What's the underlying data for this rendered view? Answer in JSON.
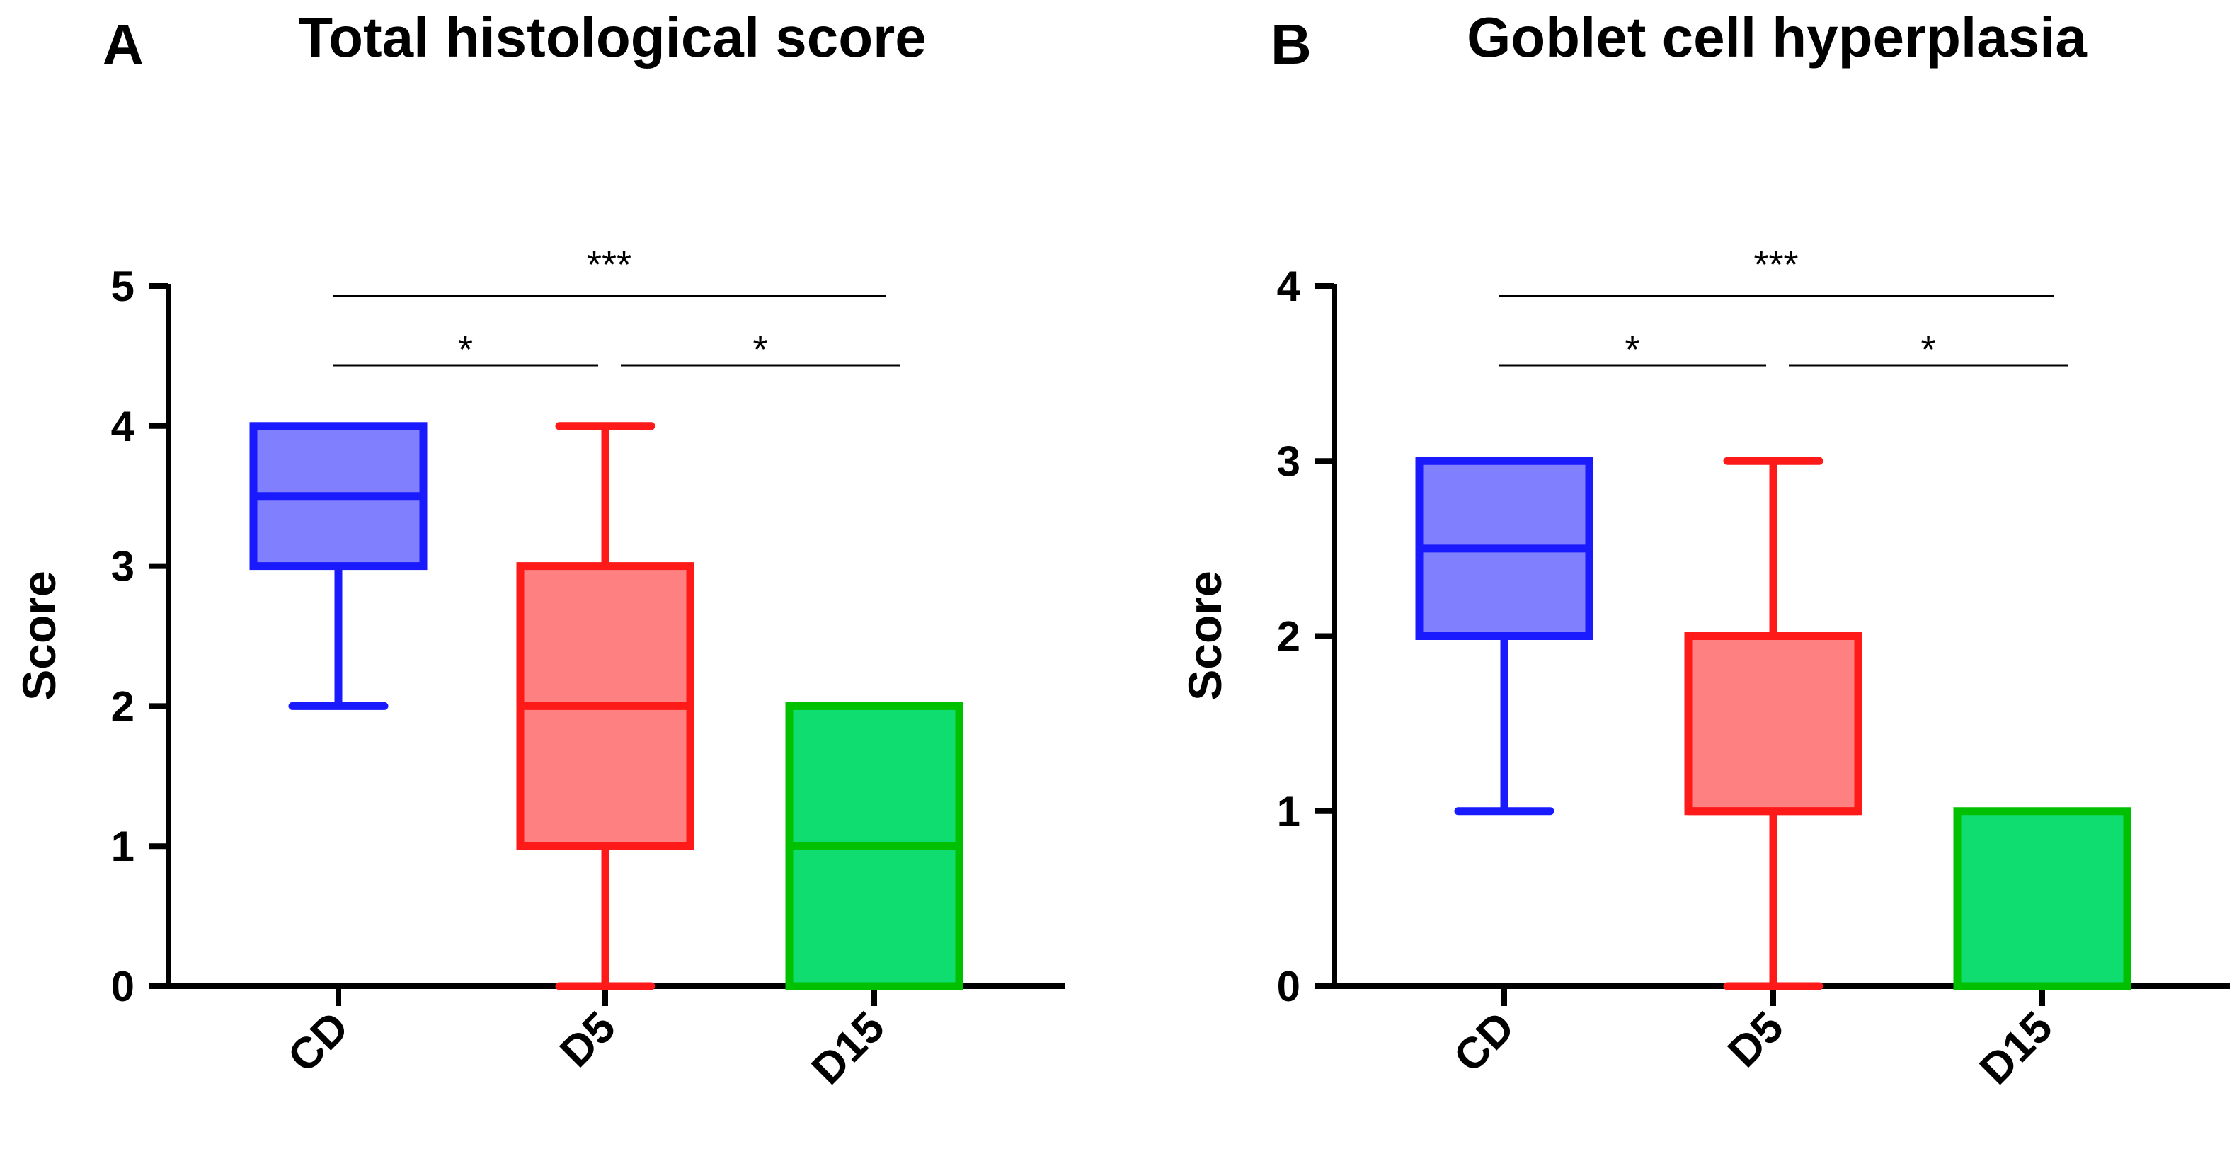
{
  "chart_data": [
    {
      "panel": "A",
      "type": "box",
      "title": "Total histological score",
      "xlabel": "",
      "ylabel": "Score",
      "ylim": [
        0,
        5
      ],
      "yticks": [
        0,
        1,
        2,
        3,
        4,
        5
      ],
      "categories": [
        "CD",
        "D5",
        "D15"
      ],
      "boxes": [
        {
          "category": "CD",
          "min": 2,
          "q1": 3,
          "median": 3.5,
          "q3": 4,
          "max": 4,
          "color": "#1a1aff",
          "fill": "#8080ff"
        },
        {
          "category": "D5",
          "min": 0,
          "q1": 1,
          "median": 2,
          "q3": 3,
          "max": 4,
          "color": "#ff1a1a",
          "fill": "#ff8080"
        },
        {
          "category": "D15",
          "min": 0,
          "q1": 0,
          "median": 1,
          "q3": 2,
          "max": 2,
          "color": "#00c000",
          "fill": "#10dd70"
        }
      ],
      "significance": [
        {
          "from": "CD",
          "to": "D15",
          "label": "***"
        },
        {
          "from": "CD",
          "to": "D5",
          "label": "*"
        },
        {
          "from": "D5",
          "to": "D15",
          "label": "*"
        }
      ]
    },
    {
      "panel": "B",
      "type": "box",
      "title": "Goblet cell hyperplasia",
      "xlabel": "",
      "ylabel": "Score",
      "ylim": [
        0,
        4
      ],
      "yticks": [
        0,
        1,
        2,
        3,
        4
      ],
      "categories": [
        "CD",
        "D5",
        "D15"
      ],
      "boxes": [
        {
          "category": "CD",
          "min": 1,
          "q1": 2,
          "median": 2.5,
          "q3": 3,
          "max": 3,
          "color": "#1a1aff",
          "fill": "#8080ff"
        },
        {
          "category": "D5",
          "min": 0,
          "q1": 1,
          "median": 1,
          "q3": 2,
          "max": 3,
          "color": "#ff1a1a",
          "fill": "#ff8080"
        },
        {
          "category": "D15",
          "min": 0,
          "q1": 0,
          "median": 0,
          "q3": 1,
          "max": 1,
          "color": "#00c000",
          "fill": "#10dd70"
        }
      ],
      "significance": [
        {
          "from": "CD",
          "to": "D15",
          "label": "***"
        },
        {
          "from": "CD",
          "to": "D5",
          "label": "*"
        },
        {
          "from": "D5",
          "to": "D15",
          "label": "*"
        }
      ]
    }
  ]
}
